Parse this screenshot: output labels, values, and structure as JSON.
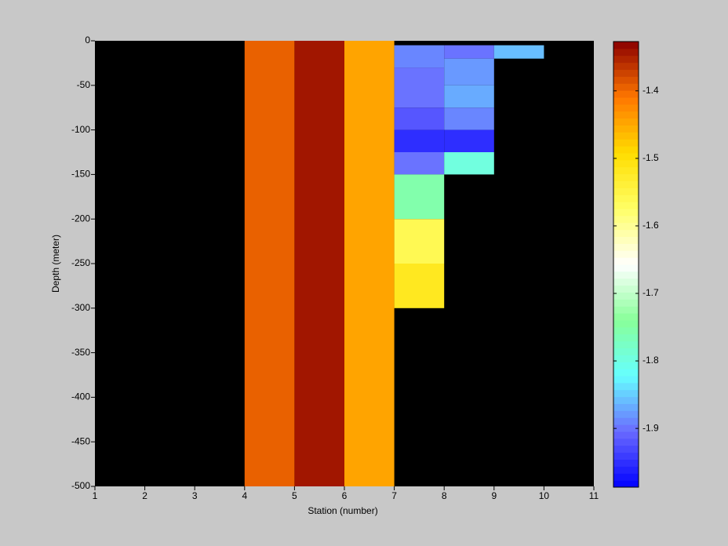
{
  "chart_data": {
    "type": "heatmap",
    "xlabel": "Station (number)",
    "ylabel": "Depth (meter)",
    "xlim": [
      1,
      11
    ],
    "xticks": [
      1,
      2,
      3,
      4,
      5,
      6,
      7,
      8,
      9,
      10,
      11
    ],
    "ylim": [
      -500,
      0
    ],
    "yticks": [
      0,
      -50,
      -100,
      -150,
      -200,
      -250,
      -300,
      -350,
      -400,
      -450,
      -500
    ],
    "background": "#000000",
    "clim": [
      -1.987,
      -1.327
    ],
    "cticks": [
      -1.4,
      -1.5,
      -1.6,
      -1.7,
      -1.8,
      -1.9
    ],
    "colormap": [
      "#0000ff",
      "#6a6aff",
      "#66ffff",
      "#88ff99",
      "#ffffff",
      "#ffff66",
      "#ffdd00",
      "#ff7700",
      "#8b0000"
    ],
    "levels": 64,
    "cells": [
      {
        "x": [
          4,
          5
        ],
        "y": [
          -500,
          0
        ],
        "value": -1.39
      },
      {
        "x": [
          5,
          6
        ],
        "y": [
          -500,
          0
        ],
        "value": -1.34
      },
      {
        "x": [
          6,
          7
        ],
        "y": [
          -500,
          0
        ],
        "value": -1.45
      },
      {
        "x": [
          7,
          8
        ],
        "y": [
          -30,
          -5
        ],
        "value": -1.89
      },
      {
        "x": [
          7,
          8
        ],
        "y": [
          -75,
          -30
        ],
        "value": -1.9
      },
      {
        "x": [
          7,
          8
        ],
        "y": [
          -100,
          -75
        ],
        "value": -1.92
      },
      {
        "x": [
          7,
          8
        ],
        "y": [
          -125,
          -100
        ],
        "value": -1.95
      },
      {
        "x": [
          7,
          8
        ],
        "y": [
          -150,
          -125
        ],
        "value": -1.9
      },
      {
        "x": [
          7,
          8
        ],
        "y": [
          -200,
          -150
        ],
        "value": -1.76
      },
      {
        "x": [
          7,
          8
        ],
        "y": [
          -250,
          -200
        ],
        "value": -1.56
      },
      {
        "x": [
          7,
          8
        ],
        "y": [
          -300,
          -250
        ],
        "value": -1.52
      },
      {
        "x": [
          8,
          9
        ],
        "y": [
          -20,
          -5
        ],
        "value": -1.9
      },
      {
        "x": [
          8,
          9
        ],
        "y": [
          -50,
          -20
        ],
        "value": -1.88
      },
      {
        "x": [
          8,
          9
        ],
        "y": [
          -75,
          -50
        ],
        "value": -1.87
      },
      {
        "x": [
          8,
          9
        ],
        "y": [
          -100,
          -75
        ],
        "value": -1.89
      },
      {
        "x": [
          8,
          9
        ],
        "y": [
          -125,
          -100
        ],
        "value": -1.95
      },
      {
        "x": [
          8,
          9
        ],
        "y": [
          -150,
          -125
        ],
        "value": -1.8
      },
      {
        "x": [
          9,
          10
        ],
        "y": [
          -20,
          -5
        ],
        "value": -1.86
      }
    ]
  }
}
